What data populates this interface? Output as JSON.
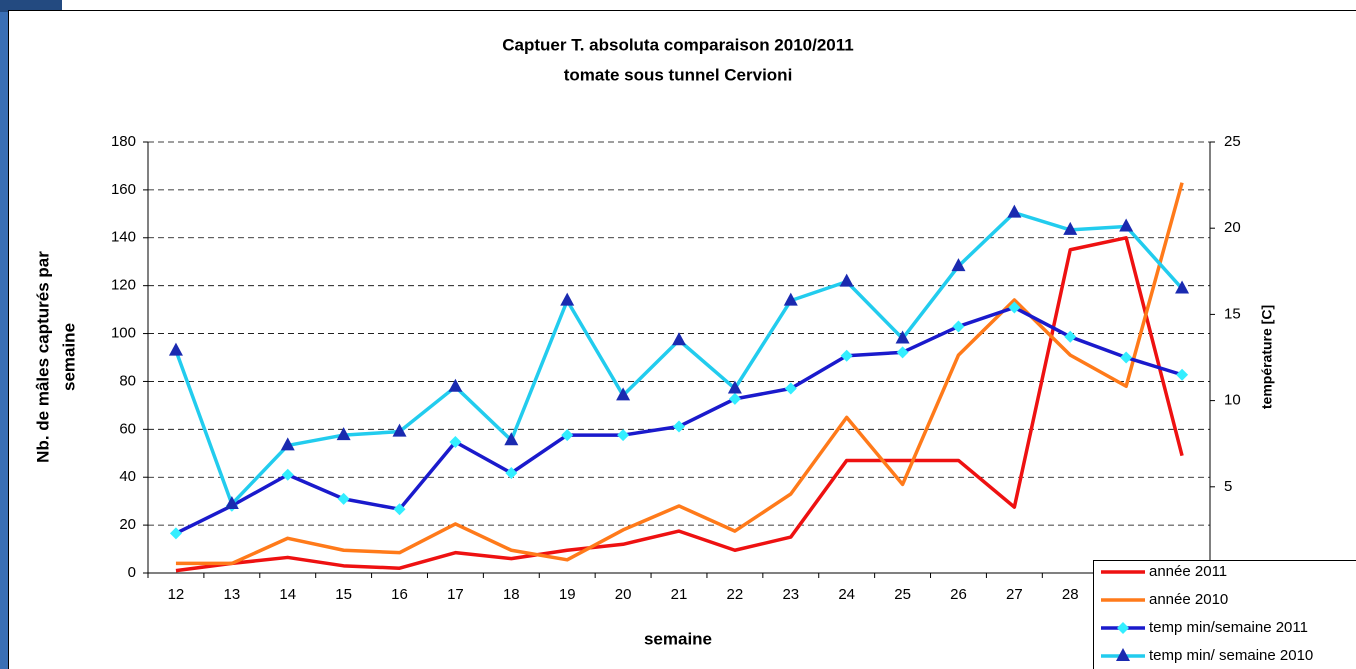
{
  "chart_data": {
    "type": "line",
    "title": "Captuer T. absoluta comparaison 2010/2011",
    "subtitle": "tomate sous tunnel Cervioni",
    "xlabel": "semaine",
    "ylabel": [
      "Nb. de mâles capturés par",
      "semaine"
    ],
    "y2label": "température [C]",
    "categories": [
      "12",
      "13",
      "14",
      "15",
      "16",
      "17",
      "18",
      "19",
      "20",
      "21",
      "22",
      "23",
      "24",
      "25",
      "26",
      "27",
      "28",
      null,
      null
    ],
    "ylim": [
      0,
      180
    ],
    "yticks": [
      0,
      20,
      40,
      60,
      80,
      100,
      120,
      140,
      160,
      180
    ],
    "y2lim": [
      0,
      25
    ],
    "y2ticks": [
      5,
      10,
      15,
      20,
      25
    ],
    "grid": true,
    "legend": "bottom-right",
    "series": [
      {
        "name": "année 2011",
        "color": "#ee1111",
        "values": [
          1,
          4,
          6.5,
          3,
          2,
          8.5,
          6,
          9.5,
          12,
          17.5,
          9.5,
          15,
          47,
          47,
          47,
          27.5,
          135,
          140,
          49
        ]
      },
      {
        "name": "année 2010",
        "color": "#ff7a1a",
        "values": [
          4,
          4,
          14.5,
          9.5,
          8.5,
          20.5,
          9.5,
          5.5,
          18,
          28,
          17.5,
          33,
          65,
          37,
          91,
          114,
          91,
          78,
          163
        ]
      },
      {
        "name": "temp min/semaine 2011",
        "color": "#1a1acc",
        "marker": "diamond",
        "marker_color": "#33eeff",
        "axis": "y2",
        "values": [
          2.3,
          3.9,
          5.7,
          4.3,
          3.7,
          7.6,
          5.8,
          8.0,
          8.0,
          8.5,
          10.1,
          10.7,
          12.6,
          12.8,
          14.3,
          15.4,
          13.7,
          12.5,
          11.5
        ]
      },
      {
        "name": "temp min/ semaine 2010",
        "color": "#22ccee",
        "marker": "triangle",
        "marker_color": "#1a2ab0",
        "axis": "y2",
        "values": [
          12.9,
          4.0,
          7.4,
          8.0,
          8.2,
          10.8,
          7.7,
          15.8,
          10.3,
          13.5,
          10.7,
          15.8,
          16.9,
          13.6,
          17.8,
          20.9,
          19.9,
          20.1,
          16.5
        ]
      }
    ]
  }
}
